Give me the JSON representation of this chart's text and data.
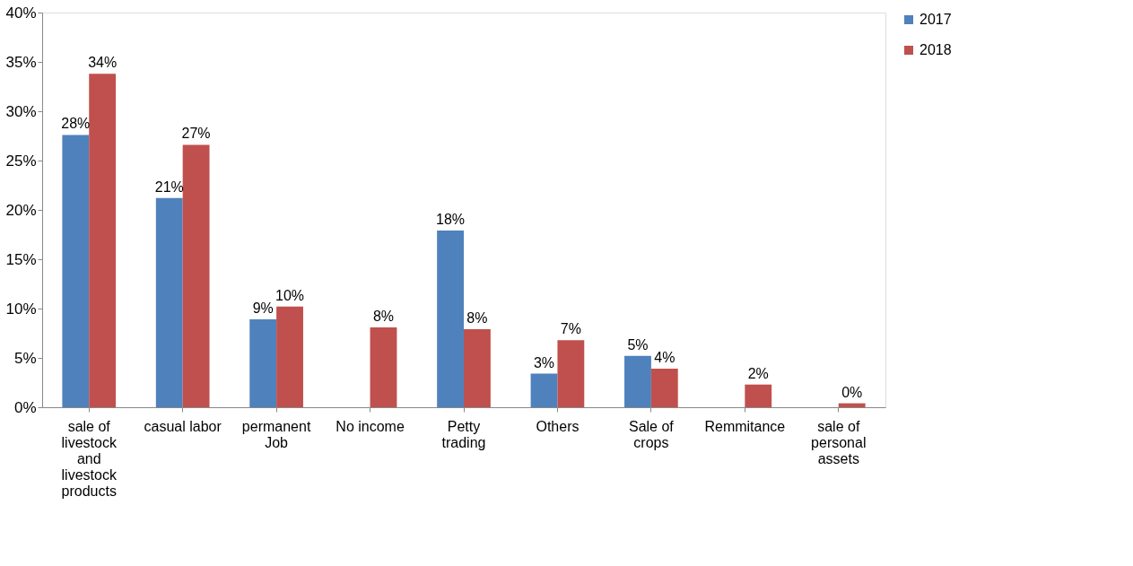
{
  "chart_data": {
    "type": "bar",
    "categories": [
      "sale of livestock and livestock products",
      "casual labor",
      "permanent Job",
      "No income",
      "Petty trading",
      "Others",
      "Sale of crops",
      "Remmitance",
      "sale of personal assets"
    ],
    "series": [
      {
        "name": "2017",
        "color": "#4f81bd",
        "values": [
          27.6,
          21.2,
          8.9,
          null,
          17.9,
          3.4,
          5.2,
          null,
          null
        ],
        "value_labels": [
          "28%",
          "21%",
          "9%",
          null,
          "18%",
          "3%",
          "5%",
          null,
          null
        ]
      },
      {
        "name": "2018",
        "color": "#c0504d",
        "values": [
          33.8,
          26.6,
          10.2,
          8.1,
          7.9,
          6.8,
          3.9,
          2.3,
          0.4
        ],
        "value_labels": [
          "34%",
          "27%",
          "10%",
          "8%",
          "8%",
          "7%",
          "4%",
          "2%",
          "0%"
        ]
      }
    ],
    "ylim": [
      0,
      40
    ],
    "yticks": [
      {
        "value": 0,
        "label": "0%"
      },
      {
        "value": 5,
        "label": "5%"
      },
      {
        "value": 10,
        "label": "10%"
      },
      {
        "value": 15,
        "label": "15%"
      },
      {
        "value": 20,
        "label": "20%"
      },
      {
        "value": 25,
        "label": "25%"
      },
      {
        "value": 30,
        "label": "30%"
      },
      {
        "value": 35,
        "label": "35%"
      },
      {
        "value": 40,
        "label": "40%"
      }
    ],
    "grid": false,
    "legend": "right"
  }
}
